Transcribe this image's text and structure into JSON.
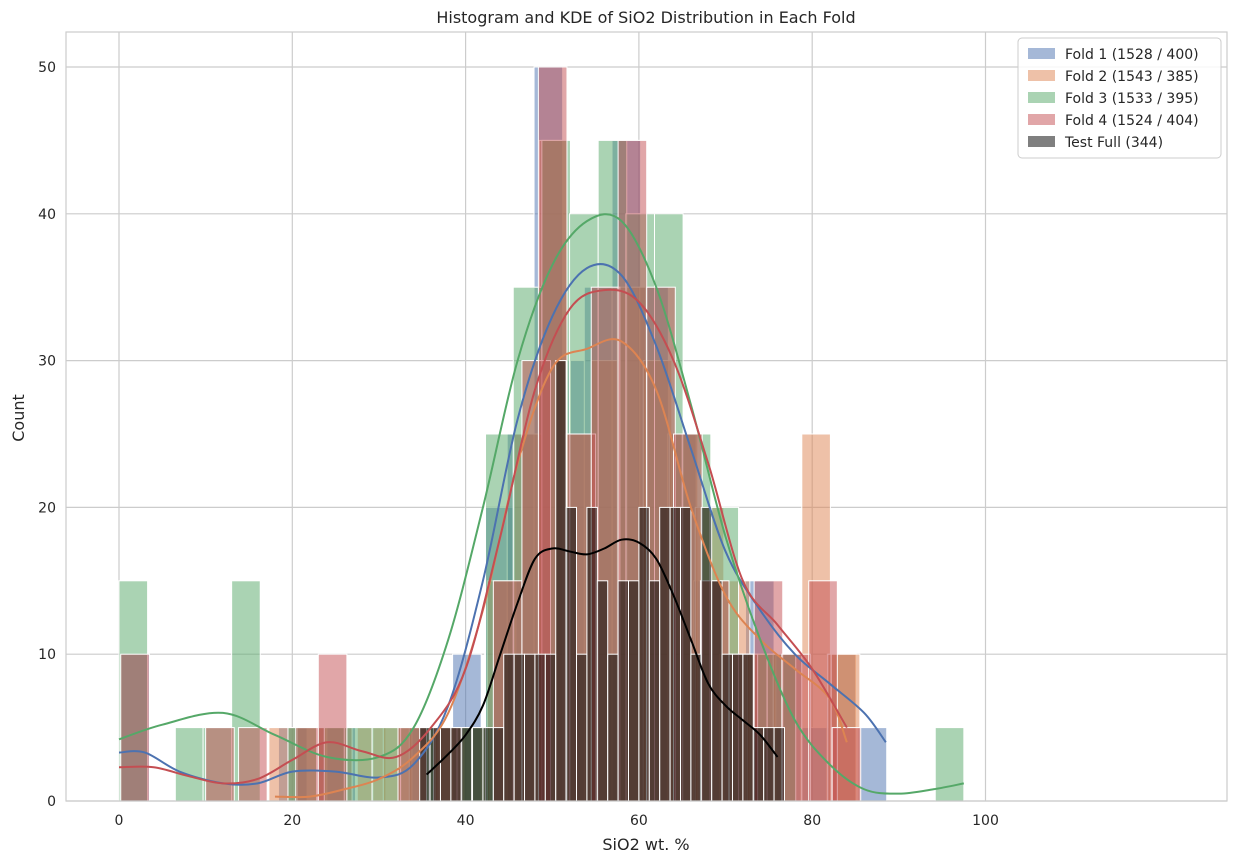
{
  "chart_data": {
    "type": "histogram",
    "title": "Histogram and KDE of SiO2 Distribution in Each Fold",
    "xlabel": "SiO2 wt. %",
    "ylabel": "Count",
    "xlim": [
      -5,
      102.5
    ],
    "ylim": [
      0,
      52.5
    ],
    "xticks": [
      0,
      20,
      40,
      60,
      80,
      100
    ],
    "yticks": [
      0,
      10,
      20,
      30,
      40,
      50
    ],
    "grid": true,
    "legend_position": "top-right",
    "series": [
      {
        "name": "Fold 1 (1528 / 400)",
        "color": "#4c72b0",
        "kind": "hist",
        "bin_width": 3.3,
        "bars": [
          [
            0.2,
            10
          ],
          [
            18.4,
            5
          ],
          [
            24.0,
            5
          ],
          [
            33.5,
            5
          ],
          [
            38.5,
            10
          ],
          [
            42.2,
            20
          ],
          [
            44.8,
            25
          ],
          [
            47.9,
            50
          ],
          [
            50.5,
            30
          ],
          [
            53.7,
            35
          ],
          [
            56.9,
            45
          ],
          [
            60.1,
            35
          ],
          [
            63.3,
            25
          ],
          [
            66.3,
            15
          ],
          [
            69.3,
            10
          ],
          [
            72.3,
            15
          ],
          [
            75.5,
            10
          ],
          [
            78.7,
            5
          ],
          [
            81.7,
            10
          ],
          [
            85.3,
            5
          ]
        ],
        "kde": [
          [
            0,
            3.3
          ],
          [
            3,
            3.3
          ],
          [
            7,
            2.0
          ],
          [
            12,
            1.2
          ],
          [
            16,
            1.2
          ],
          [
            20,
            2.0
          ],
          [
            25,
            2.0
          ],
          [
            30,
            1.6
          ],
          [
            34,
            2.5
          ],
          [
            38,
            6.5
          ],
          [
            42,
            15
          ],
          [
            46,
            26
          ],
          [
            50,
            33
          ],
          [
            54,
            36.3
          ],
          [
            58,
            35.8
          ],
          [
            62,
            31
          ],
          [
            66,
            24
          ],
          [
            70,
            17
          ],
          [
            74,
            13
          ],
          [
            78,
            10
          ],
          [
            82,
            8
          ],
          [
            86,
            6
          ],
          [
            88.5,
            4
          ]
        ]
      },
      {
        "name": "Fold 2 (1543 / 385)",
        "color": "#dd8452",
        "kind": "hist",
        "bin_width": 3.3,
        "bars": [
          [
            17.3,
            5
          ],
          [
            20.6,
            5
          ],
          [
            23.6,
            5
          ],
          [
            27.5,
            5
          ],
          [
            30.5,
            5
          ],
          [
            33.5,
            5
          ],
          [
            36.5,
            5
          ],
          [
            39.5,
            5
          ],
          [
            42.5,
            15
          ],
          [
            45.5,
            25
          ],
          [
            48.5,
            45
          ],
          [
            51.5,
            25
          ],
          [
            54.5,
            30
          ],
          [
            57.5,
            35
          ],
          [
            60.5,
            30
          ],
          [
            63.5,
            25
          ],
          [
            66.5,
            20
          ],
          [
            69.5,
            15
          ],
          [
            72.5,
            10
          ],
          [
            75.5,
            10
          ],
          [
            78.8,
            25
          ],
          [
            81.8,
            10
          ],
          [
            82.2,
            10
          ]
        ],
        "kde": [
          [
            18,
            0.3
          ],
          [
            22,
            0.3
          ],
          [
            26,
            0.8
          ],
          [
            30,
            1.5
          ],
          [
            34,
            3
          ],
          [
            38,
            6
          ],
          [
            42,
            13
          ],
          [
            46,
            23
          ],
          [
            50,
            29.5
          ],
          [
            54,
            30.8
          ],
          [
            58,
            31.3
          ],
          [
            62,
            28
          ],
          [
            66,
            20
          ],
          [
            70,
            14
          ],
          [
            74,
            11
          ],
          [
            78,
            9
          ],
          [
            82,
            7
          ],
          [
            84,
            4
          ]
        ]
      },
      {
        "name": "Fold 3 (1533 / 395)",
        "color": "#55a868",
        "kind": "hist",
        "bin_width": 3.3,
        "bars": [
          [
            0,
            15
          ],
          [
            6.5,
            5
          ],
          [
            9.7,
            5
          ],
          [
            13,
            15
          ],
          [
            19.5,
            5
          ],
          [
            22.9,
            5
          ],
          [
            26,
            5
          ],
          [
            29.2,
            5
          ],
          [
            32.5,
            5
          ],
          [
            35.8,
            5
          ],
          [
            39.0,
            5
          ],
          [
            42.3,
            25
          ],
          [
            45.5,
            35
          ],
          [
            48.8,
            45
          ],
          [
            52.0,
            40
          ],
          [
            55.3,
            45
          ],
          [
            58.5,
            40
          ],
          [
            61.8,
            40
          ],
          [
            65.0,
            25
          ],
          [
            68.2,
            20
          ],
          [
            71.5,
            10
          ],
          [
            74.8,
            10
          ],
          [
            94.2,
            5
          ]
        ],
        "kde": [
          [
            0,
            4.2
          ],
          [
            5,
            5.2
          ],
          [
            12,
            6.0
          ],
          [
            18,
            4.5
          ],
          [
            24,
            3.0
          ],
          [
            30,
            3.0
          ],
          [
            34,
            5
          ],
          [
            38,
            11
          ],
          [
            42,
            20
          ],
          [
            46,
            30
          ],
          [
            50,
            36.5
          ],
          [
            54,
            39.5
          ],
          [
            58,
            39.5
          ],
          [
            62,
            35
          ],
          [
            66,
            27
          ],
          [
            70,
            18
          ],
          [
            74,
            11
          ],
          [
            78,
            5.5
          ],
          [
            82,
            2.5
          ],
          [
            86,
            0.8
          ],
          [
            90,
            0.5
          ],
          [
            94,
            0.8
          ],
          [
            97.5,
            1.2
          ]
        ]
      },
      {
        "name": "Fold 4 (1524 / 404)",
        "color": "#c44e52",
        "kind": "hist",
        "bin_width": 3.3,
        "bars": [
          [
            0.2,
            10
          ],
          [
            10,
            5
          ],
          [
            13.8,
            5
          ],
          [
            20.4,
            5
          ],
          [
            23.0,
            10
          ],
          [
            32.2,
            5
          ],
          [
            36.3,
            5
          ],
          [
            43.2,
            15
          ],
          [
            46.5,
            30
          ],
          [
            48.4,
            50
          ],
          [
            51.7,
            25
          ],
          [
            54.5,
            35
          ],
          [
            57.6,
            45
          ],
          [
            60.9,
            35
          ],
          [
            64.0,
            25
          ],
          [
            67.1,
            15
          ],
          [
            70.4,
            10
          ],
          [
            73.3,
            15
          ],
          [
            76.5,
            10
          ],
          [
            79.6,
            15
          ],
          [
            82.3,
            5
          ]
        ],
        "kde": [
          [
            0,
            2.3
          ],
          [
            4,
            2.3
          ],
          [
            8,
            1.7
          ],
          [
            12,
            1.2
          ],
          [
            16,
            1.5
          ],
          [
            20,
            2.8
          ],
          [
            24,
            4.0
          ],
          [
            28,
            3.4
          ],
          [
            32,
            3.0
          ],
          [
            36,
            5
          ],
          [
            40,
            9
          ],
          [
            44,
            18
          ],
          [
            48,
            28
          ],
          [
            52,
            33.5
          ],
          [
            56,
            34.8
          ],
          [
            60,
            34
          ],
          [
            64,
            30
          ],
          [
            68,
            23
          ],
          [
            72,
            15
          ],
          [
            76,
            12
          ],
          [
            80,
            9
          ],
          [
            84,
            5
          ]
        ]
      },
      {
        "name": "Test Full (344)",
        "color": "#000000",
        "kind": "hist",
        "bin_width": 1.2,
        "bars": [
          [
            34.7,
            5
          ],
          [
            35.9,
            5
          ],
          [
            37.1,
            5
          ],
          [
            38.3,
            5
          ],
          [
            39.5,
            5
          ],
          [
            40.8,
            5
          ],
          [
            42.0,
            5
          ],
          [
            43.2,
            5
          ],
          [
            44.4,
            10
          ],
          [
            45.6,
            10
          ],
          [
            46.8,
            10
          ],
          [
            48.0,
            10
          ],
          [
            49.2,
            10
          ],
          [
            50.4,
            30
          ],
          [
            51.6,
            20
          ],
          [
            52.8,
            10
          ],
          [
            54.0,
            20
          ],
          [
            55.2,
            15
          ],
          [
            56.4,
            10
          ],
          [
            57.6,
            15
          ],
          [
            58.8,
            15
          ],
          [
            60.0,
            20
          ],
          [
            61.2,
            15
          ],
          [
            62.4,
            20
          ],
          [
            63.6,
            20
          ],
          [
            64.8,
            20
          ],
          [
            66.0,
            10
          ],
          [
            67.2,
            20
          ],
          [
            68.4,
            15
          ],
          [
            69.6,
            10
          ],
          [
            70.8,
            10
          ],
          [
            72.0,
            10
          ],
          [
            73.2,
            5
          ],
          [
            74.4,
            5
          ],
          [
            75.6,
            5
          ]
        ],
        "kde": [
          [
            35.5,
            1.8
          ],
          [
            38,
            3.2
          ],
          [
            40,
            4.5
          ],
          [
            42,
            6.5
          ],
          [
            44,
            10
          ],
          [
            46,
            13.5
          ],
          [
            48,
            16.5
          ],
          [
            50,
            17.2
          ],
          [
            52,
            17.0
          ],
          [
            54,
            16.8
          ],
          [
            56,
            17.2
          ],
          [
            58,
            17.8
          ],
          [
            60,
            17.6
          ],
          [
            62,
            16.5
          ],
          [
            64,
            14
          ],
          [
            66,
            11
          ],
          [
            68,
            8
          ],
          [
            70,
            6.5
          ],
          [
            72,
            5.5
          ],
          [
            74,
            4.5
          ],
          [
            76,
            3.0
          ]
        ]
      }
    ]
  }
}
